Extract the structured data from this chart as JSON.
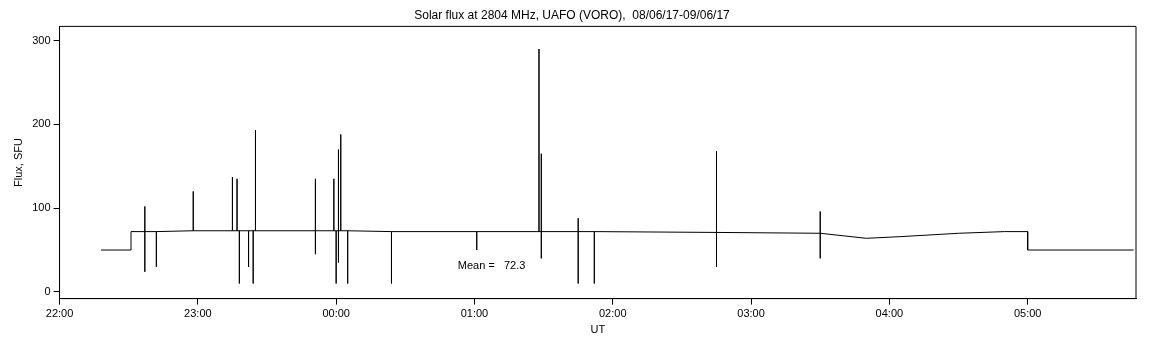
{
  "chart_data": {
    "type": "line",
    "title": "Solar flux at 2804 MHz, UAFO (VORO),  08/06/17-09/06/17",
    "xlabel": "UT",
    "ylabel": "Flux, SFU",
    "x": [
      "--06-08T22:18",
      "--06-08T22:31",
      "--06-08T22:31",
      "--06-08T22:37",
      "--06-08T22:37",
      "--06-08T22:37",
      "--06-08T22:37",
      "--06-08T22:42",
      "--06-08T22:42",
      "--06-08T22:42",
      "--06-08T22:58",
      "--06-08T22:58",
      "--06-08T22:58",
      "--06-08T23:15",
      "--06-08T23:15",
      "--06-08T23:15",
      "--06-08T23:17",
      "--06-08T23:17",
      "--06-08T23:17",
      "--06-08T23:18",
      "--06-08T23:18",
      "--06-08T23:18",
      "--06-08T23:22",
      "--06-08T23:22",
      "--06-08T23:22",
      "--06-08T23:24",
      "--06-08T23:24",
      "--06-08T23:24",
      "--06-08T23:25",
      "--06-08T23:25",
      "--06-08T23:25",
      "--06-08T23:51",
      "--06-08T23:51",
      "--06-08T23:51",
      "--06-08T23:51",
      "--06-08T23:59",
      "--06-08T23:59",
      "--06-08T23:59",
      "--06-09T00:00",
      "--06-09T00:00",
      "--06-09T00:00",
      "--06-09T00:01",
      "--06-09T00:01",
      "--06-09T00:01",
      "--06-09T00:01",
      "--06-09T00:02",
      "--06-09T00:02",
      "--06-09T00:02",
      "--06-09T00:05",
      "--06-09T00:05",
      "--06-09T00:05",
      "--06-09T00:24",
      "--06-09T00:24",
      "--06-09T00:24",
      "--06-09T01:01",
      "--06-09T01:01",
      "--06-09T01:01",
      "--06-09T01:28",
      "--06-09T01:28",
      "--06-09T01:28",
      "--06-09T01:29",
      "--06-09T01:29",
      "--06-09T01:29",
      "--06-09T01:29",
      "--06-09T01:45",
      "--06-09T01:45",
      "--06-09T01:45",
      "--06-09T01:45",
      "--06-09T01:52",
      "--06-09T01:52",
      "--06-09T01:52",
      "--06-09T02:45",
      "--06-09T02:45",
      "--06-09T02:45",
      "--06-09T02:45",
      "--06-09T03:30",
      "--06-09T03:30",
      "--06-09T03:30",
      "--06-09T03:30",
      "--06-09T03:40",
      "--06-09T03:50",
      "--06-09T04:05",
      "--06-09T04:30",
      "--06-09T04:50",
      "--06-09T05:00",
      "--06-09T05:00",
      "--06-09T05:46"
    ],
    "series": [
      {
        "color": "#000000",
        "values": [
          50,
          50,
          72,
          72,
          102,
          24,
          72,
          72,
          30,
          72,
          73,
          120,
          73,
          73,
          137,
          73,
          73,
          135,
          73,
          73,
          10,
          73,
          73,
          30,
          73,
          73,
          10,
          73,
          73,
          193,
          73,
          73,
          135,
          45,
          73,
          73,
          135,
          73,
          73,
          10,
          73,
          73,
          170,
          35,
          73,
          73,
          188,
          73,
          73,
          10,
          73,
          72,
          10,
          72,
          72,
          50,
          72,
          72,
          290,
          72,
          72,
          165,
          40,
          72,
          72,
          10,
          88,
          72,
          72,
          10,
          72,
          71,
          168,
          30,
          71,
          70,
          96,
          40,
          70,
          67,
          64,
          66,
          70,
          72,
          72,
          50,
          50
        ]
      }
    ],
    "xlim": [
      "--06-08T22:00",
      "--06-09T05:47"
    ],
    "xticks": [
      {
        "value": "--06-08T22:00",
        "label": "22:00"
      },
      {
        "value": "--06-08T23:00",
        "label": "23:00"
      },
      {
        "value": "--06-09T00:00",
        "label": "00:00"
      },
      {
        "value": "--06-09T01:00",
        "label": "01:00"
      },
      {
        "value": "--06-09T02:00",
        "label": "02:00"
      },
      {
        "value": "--06-09T03:00",
        "label": "03:00"
      },
      {
        "value": "--06-09T04:00",
        "label": "04:00"
      },
      {
        "value": "--06-09T05:00",
        "label": "05:00"
      }
    ],
    "ylim": [
      -8,
      317
    ],
    "yticks": [
      0,
      100,
      200,
      300
    ],
    "annotations": [
      "Mean =   72.3"
    ],
    "grid": false,
    "legend": false,
    "marker": "none",
    "line_style": "solid"
  }
}
